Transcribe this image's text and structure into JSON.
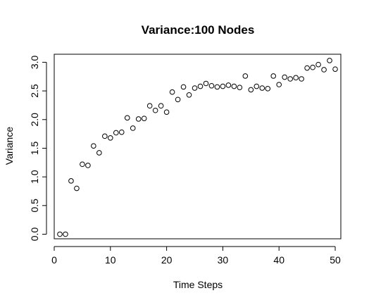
{
  "chart_data": {
    "type": "scatter",
    "title": "Variance:100 Nodes",
    "xlabel": "Time Steps",
    "ylabel": "Variance",
    "xlim": [
      0,
      51
    ],
    "ylim": [
      -0.08,
      3.14
    ],
    "xticks": [
      0,
      10,
      20,
      30,
      40,
      50
    ],
    "yticks": [
      0.0,
      0.5,
      1.0,
      1.5,
      2.0,
      2.5,
      3.0
    ],
    "xtick_labels": [
      "0",
      "10",
      "20",
      "30",
      "40",
      "50"
    ],
    "ytick_labels": [
      "0.0",
      "0.5",
      "1.0",
      "1.5",
      "2.0",
      "2.5",
      "3.0"
    ],
    "marker": "open-circle",
    "grid": false,
    "series": [
      {
        "x": [
          1,
          2,
          3,
          4,
          5,
          6,
          7,
          8,
          9,
          10,
          11,
          12,
          13,
          14,
          15,
          16,
          17,
          18,
          19,
          20,
          21,
          22,
          23,
          24,
          25,
          26,
          27,
          28,
          29,
          30,
          31,
          32,
          33,
          34,
          35,
          36,
          37,
          38,
          39,
          40,
          41,
          42,
          43,
          44,
          45,
          46,
          47,
          48,
          49,
          50
        ],
        "values": [
          0.0,
          0.0,
          0.93,
          0.8,
          1.22,
          1.2,
          1.54,
          1.42,
          1.71,
          1.68,
          1.77,
          1.78,
          2.03,
          1.85,
          2.01,
          2.02,
          2.24,
          2.16,
          2.24,
          2.13,
          2.48,
          2.35,
          2.57,
          2.43,
          2.55,
          2.58,
          2.63,
          2.59,
          2.57,
          2.58,
          2.6,
          2.58,
          2.56,
          2.76,
          2.52,
          2.58,
          2.55,
          2.54,
          2.76,
          2.61,
          2.74,
          2.71,
          2.73,
          2.71,
          2.9,
          2.91,
          2.96,
          2.87,
          3.03,
          2.88
        ]
      }
    ]
  }
}
